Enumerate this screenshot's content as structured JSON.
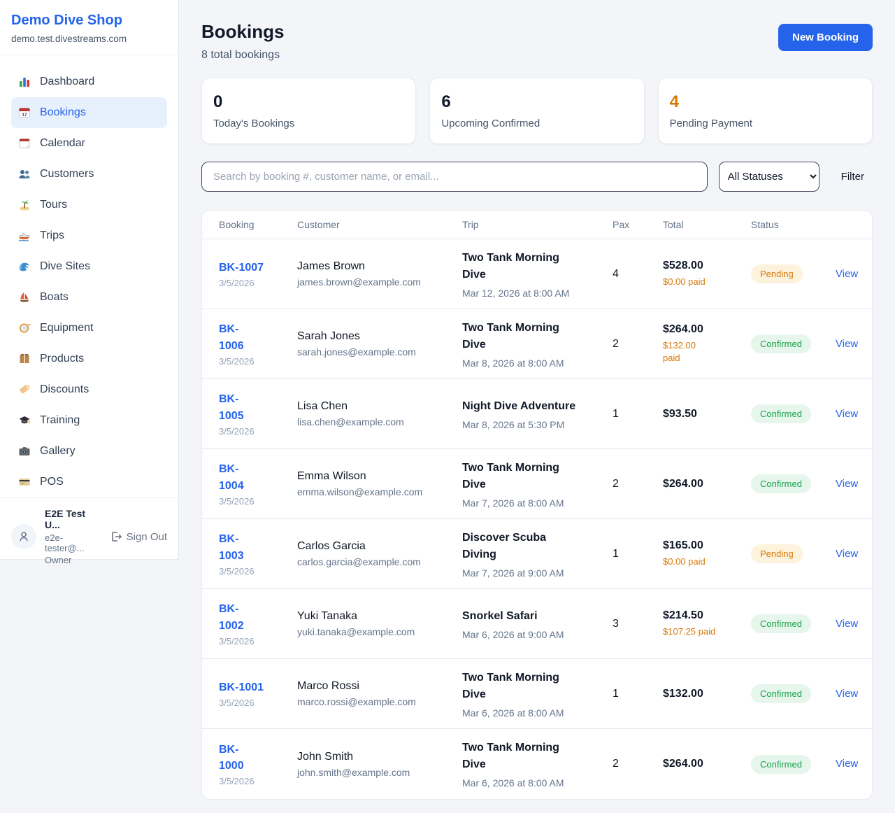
{
  "sidebar": {
    "brand": {
      "name": "Demo Dive Shop",
      "domain": "demo.test.divestreams.com"
    },
    "items": [
      {
        "label": "Dashboard",
        "icon": "bar-chart",
        "active": false
      },
      {
        "label": "Bookings",
        "icon": "calendar-date",
        "active": true
      },
      {
        "label": "Calendar",
        "icon": "tear-calendar",
        "active": false
      },
      {
        "label": "Customers",
        "icon": "people",
        "active": false
      },
      {
        "label": "Tours",
        "icon": "island",
        "active": false
      },
      {
        "label": "Trips",
        "icon": "speedboat",
        "active": false
      },
      {
        "label": "Dive Sites",
        "icon": "wave",
        "active": false
      },
      {
        "label": "Boats",
        "icon": "sailboat",
        "active": false
      },
      {
        "label": "Equipment",
        "icon": "diving-mask",
        "active": false
      },
      {
        "label": "Products",
        "icon": "package",
        "active": false
      },
      {
        "label": "Discounts",
        "icon": "tag",
        "active": false
      },
      {
        "label": "Training",
        "icon": "graduation-cap",
        "active": false
      },
      {
        "label": "Gallery",
        "icon": "camera",
        "active": false
      },
      {
        "label": "POS",
        "icon": "credit-card",
        "active": false
      }
    ],
    "user": {
      "name": "E2E Test U...",
      "email": "e2e-tester@...",
      "role": "Owner",
      "sign_out_label": "Sign Out"
    }
  },
  "header": {
    "title": "Bookings",
    "subtitle": "8 total bookings",
    "new_booking_label": "New Booking"
  },
  "stats": [
    {
      "value": "0",
      "label": "Today's Bookings",
      "value_color": "#0f172a"
    },
    {
      "value": "6",
      "label": "Upcoming Confirmed",
      "value_color": "#0f172a"
    },
    {
      "value": "4",
      "label": "Pending Payment",
      "value_color": "#d97706"
    }
  ],
  "filters": {
    "search_placeholder": "Search by booking #, customer name, or email...",
    "status_selected": "All Statuses",
    "filter_label": "Filter"
  },
  "table": {
    "columns": [
      "Booking",
      "Customer",
      "Trip",
      "Pax",
      "Total",
      "Status"
    ],
    "view_label": "View",
    "rows": [
      {
        "id": "BK-1007",
        "date": "3/5/2026",
        "customer": "James Brown",
        "email": "james.brown@example.com",
        "trip": "Two Tank Morning\nDive",
        "trip_when": "Mar 12, 2026 at 8:00 AM",
        "pax": "4",
        "total": "$528.00",
        "paid": "$0.00 paid",
        "status": "Pending"
      },
      {
        "id": "BK-\n1006",
        "date": "3/5/2026",
        "customer": "Sarah Jones",
        "email": "sarah.jones@example.com",
        "trip": "Two Tank Morning\nDive",
        "trip_when": "Mar 8, 2026 at 8:00 AM",
        "pax": "2",
        "total": "$264.00",
        "paid": "$132.00\npaid",
        "status": "Confirmed"
      },
      {
        "id": "BK-\n1005",
        "date": "3/5/2026",
        "customer": "Lisa Chen",
        "email": "lisa.chen@example.com",
        "trip": "Night Dive Adventure",
        "trip_when": "Mar 8, 2026 at 5:30 PM",
        "pax": "1",
        "total": "$93.50",
        "paid": "",
        "status": "Confirmed"
      },
      {
        "id": "BK-\n1004",
        "date": "3/5/2026",
        "customer": "Emma Wilson",
        "email": "emma.wilson@example.com",
        "trip": "Two Tank Morning\nDive",
        "trip_when": "Mar 7, 2026 at 8:00 AM",
        "pax": "2",
        "total": "$264.00",
        "paid": "",
        "status": "Confirmed"
      },
      {
        "id": "BK-\n1003",
        "date": "3/5/2026",
        "customer": "Carlos Garcia",
        "email": "carlos.garcia@example.com",
        "trip": "Discover Scuba\nDiving",
        "trip_when": "Mar 7, 2026 at 9:00 AM",
        "pax": "1",
        "total": "$165.00",
        "paid": "$0.00 paid",
        "status": "Pending"
      },
      {
        "id": "BK-\n1002",
        "date": "3/5/2026",
        "customer": "Yuki Tanaka",
        "email": "yuki.tanaka@example.com",
        "trip": "Snorkel Safari",
        "trip_when": "Mar 6, 2026 at 9:00 AM",
        "pax": "3",
        "total": "$214.50",
        "paid": "$107.25 paid",
        "status": "Confirmed"
      },
      {
        "id": "BK-1001",
        "date": "3/5/2026",
        "customer": "Marco Rossi",
        "email": "marco.rossi@example.com",
        "trip": "Two Tank Morning\nDive",
        "trip_when": "Mar 6, 2026 at 8:00 AM",
        "pax": "1",
        "total": "$132.00",
        "paid": "",
        "status": "Confirmed"
      },
      {
        "id": "BK-\n1000",
        "date": "3/5/2026",
        "customer": "John Smith",
        "email": "john.smith@example.com",
        "trip": "Two Tank Morning\nDive",
        "trip_when": "Mar 6, 2026 at 8:00 AM",
        "pax": "2",
        "total": "$264.00",
        "paid": "",
        "status": "Confirmed"
      }
    ]
  },
  "status_styles": {
    "Pending": {
      "text_color": "#d97706",
      "bg_color": "#fdf3dc"
    },
    "Confirmed": {
      "text_color": "#16a34a",
      "bg_color": "#e7f6ec"
    }
  },
  "colors": {
    "accent": "#2563eb",
    "paid_amount": "#d97706",
    "pending_stat": "#d97706"
  }
}
